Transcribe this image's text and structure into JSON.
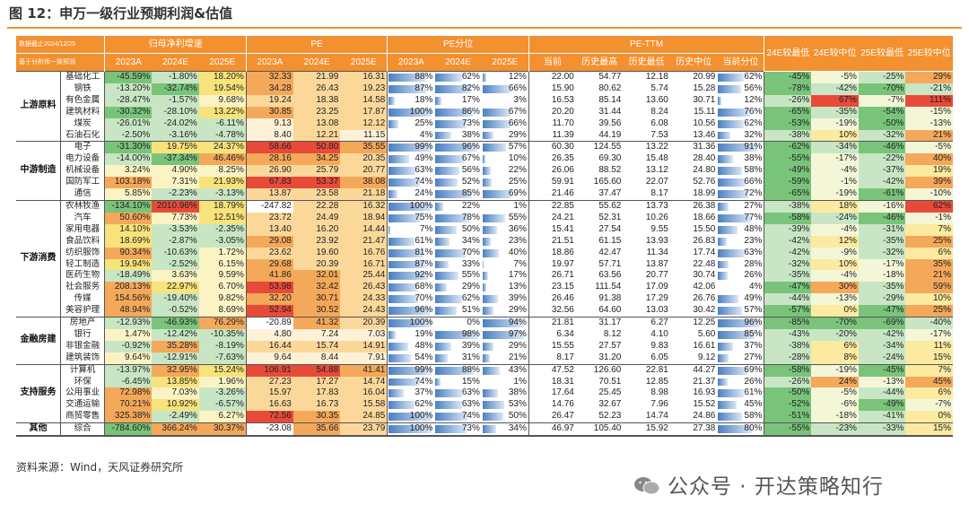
{
  "title": "图 12：申万一级行业预期利润&估值",
  "header": {
    "note1": "数据截止2024/12/25",
    "note2": "基于分析师一致预测",
    "groups": [
      "归母净利增速",
      "PE",
      "PE分位",
      "PE-TTM"
    ],
    "sub_years": [
      "2023A",
      "2024E",
      "2025E"
    ],
    "pe_ttm_cols": [
      "当前",
      "历史最高",
      "历史最低",
      "历史中位",
      "当前分位"
    ],
    "right_cols": [
      "24E较最低",
      "24E较中位",
      "25E较最低",
      "25E较中位"
    ]
  },
  "colors": {
    "accent": "#f3902f",
    "red": "#e84a3a",
    "orange": "#f4a85a",
    "yellow": "#f7e37a",
    "green": "#79c47a",
    "bar": "#4a7fc3"
  },
  "groups": [
    {
      "name": "上游原料",
      "rows": [
        {
          "ind": "基础化工",
          "np": [
            "-45.59%",
            "-1.80%",
            "18.20%"
          ],
          "pe": [
            "32.33",
            "21.99",
            "16.31"
          ],
          "pct": [
            "88%",
            "62%",
            "12%"
          ],
          "ttm": [
            "22.00",
            "54.77",
            "12.18",
            "20.99"
          ],
          "cur_pct": "62%",
          "cmp": [
            "-45%",
            "-5%",
            "-25%",
            "29%"
          ]
        },
        {
          "ind": "钢铁",
          "np": [
            "-13.20%",
            "-32.74%",
            "19.54%"
          ],
          "pe": [
            "34.28",
            "26.43",
            "19.23"
          ],
          "pct": [
            "87%",
            "82%",
            "66%"
          ],
          "ttm": [
            "15.90",
            "80.62",
            "5.74",
            "15.28"
          ],
          "cur_pct": "56%",
          "cmp": [
            "-78%",
            "-42%",
            "-70%",
            "-21%"
          ]
        },
        {
          "ind": "有色金属",
          "np": [
            "-28.47%",
            "-1.57%",
            "9.68%"
          ],
          "pe": [
            "19.24",
            "18.38",
            "14.58"
          ],
          "pct": [
            "18%",
            "17%",
            "3%"
          ],
          "ttm": [
            "16.53",
            "85.14",
            "13.60",
            "30.71"
          ],
          "cur_pct": "12%",
          "cmp": [
            "-26%",
            "67%",
            "-7%",
            "111%"
          ]
        },
        {
          "ind": "建筑材料",
          "np": [
            "-30.32%",
            "-28.10%",
            "13.22%"
          ],
          "pe": [
            "30.85",
            "23.25",
            "17.87"
          ],
          "pct": [
            "100%",
            "86%",
            "67%"
          ],
          "ttm": [
            "20.20",
            "31.44",
            "8.24",
            "15.11"
          ],
          "cur_pct": "76%",
          "cmp": [
            "-65%",
            "-35%",
            "-54%",
            "-15%"
          ]
        },
        {
          "ind": "煤炭",
          "np": [
            "-26.01%",
            "-24.02%",
            "-6.11%"
          ],
          "pe": [
            "9.13",
            "13.08",
            "12.12"
          ],
          "pct": [
            "25%",
            "73%",
            "66%"
          ],
          "ttm": [
            "11.70",
            "39.56",
            "6.08",
            "10.56"
          ],
          "cur_pct": "62%",
          "cmp": [
            "-53%",
            "-19%",
            "-50%",
            "-13%"
          ]
        },
        {
          "ind": "石油石化",
          "np": [
            "-2.50%",
            "-3.16%",
            "-4.78%"
          ],
          "pe": [
            "8.40",
            "12.21",
            "11.15"
          ],
          "pct": [
            "4%",
            "38%",
            "29%"
          ],
          "ttm": [
            "11.39",
            "44.19",
            "7.53",
            "13.46"
          ],
          "cur_pct": "32%",
          "cmp": [
            "-38%",
            "10%",
            "-32%",
            "21%"
          ]
        }
      ]
    },
    {
      "name": "中游制造",
      "rows": [
        {
          "ind": "电子",
          "np": [
            "-31.30%",
            "19.75%",
            "24.37%"
          ],
          "pe": [
            "58.66",
            "50.80",
            "35.55"
          ],
          "pct": [
            "99%",
            "96%",
            "57%"
          ],
          "ttm": [
            "60.30",
            "124.55",
            "13.22",
            "31.36"
          ],
          "cur_pct": "91%",
          "cmp": [
            "-62%",
            "-34%",
            "-46%",
            "-5%"
          ]
        },
        {
          "ind": "电力设备",
          "np": [
            "-14.00%",
            "-37.34%",
            "46.46%"
          ],
          "pe": [
            "28.16",
            "34.25",
            "20.35"
          ],
          "pct": [
            "49%",
            "67%",
            "10%"
          ],
          "ttm": [
            "26.35",
            "69.30",
            "15.48",
            "28.40"
          ],
          "cur_pct": "38%",
          "cmp": [
            "-55%",
            "-17%",
            "-22%",
            "40%"
          ]
        },
        {
          "ind": "机械设备",
          "np": [
            "3.24%",
            "4.90%",
            "8.25%"
          ],
          "pe": [
            "26.90",
            "25.79",
            "20.77"
          ],
          "pct": [
            "63%",
            "56%",
            "22%"
          ],
          "ttm": [
            "26.06",
            "88.52",
            "13.12",
            "24.80"
          ],
          "cur_pct": "58%",
          "cmp": [
            "-49%",
            "-4%",
            "-37%",
            "19%"
          ]
        },
        {
          "ind": "国防军工",
          "np": [
            "103.18%",
            "7.31%",
            "21.93%"
          ],
          "pe": [
            "67.83",
            "53.37",
            "38.08"
          ],
          "pct": [
            "74%",
            "52%",
            "25%"
          ],
          "ttm": [
            "59.91",
            "165.60",
            "22.07",
            "52.76"
          ],
          "cur_pct": "66%",
          "cmp": [
            "-59%",
            "-1%",
            "-42%",
            "39%"
          ]
        },
        {
          "ind": "通信",
          "np": [
            "5.85%",
            "-2.23%",
            "-3.13%"
          ],
          "pe": [
            "13.87",
            "23.58",
            "21.18"
          ],
          "pct": [
            "24%",
            "85%",
            "69%"
          ],
          "ttm": [
            "21.46",
            "37.47",
            "8.17",
            "18.99"
          ],
          "cur_pct": "72%",
          "cmp": [
            "-65%",
            "-19%",
            "-61%",
            "-10%"
          ]
        }
      ]
    },
    {
      "name": "下游消费",
      "rows": [
        {
          "ind": "农林牧渔",
          "np": [
            "-134.10%",
            "2010.96%",
            "18.79%"
          ],
          "pe": [
            "-247.82",
            "22.28",
            "16.32"
          ],
          "pct": [
            "100%",
            "22%",
            "1%"
          ],
          "ttm": [
            "22.85",
            "55.62",
            "13.73",
            "26.38"
          ],
          "cur_pct": "27%",
          "cmp": [
            "-38%",
            "18%",
            "-16%",
            "62%"
          ]
        },
        {
          "ind": "汽车",
          "np": [
            "50.60%",
            "7.73%",
            "12.51%"
          ],
          "pe": [
            "23.72",
            "24.49",
            "18.94"
          ],
          "pct": [
            "75%",
            "78%",
            "55%"
          ],
          "ttm": [
            "24.21",
            "52.31",
            "10.26",
            "18.66"
          ],
          "cur_pct": "77%",
          "cmp": [
            "-58%",
            "-24%",
            "-46%",
            "-1%"
          ]
        },
        {
          "ind": "家用电器",
          "np": [
            "14.10%",
            "-3.53%",
            "-2.35%"
          ],
          "pe": [
            "13.40",
            "16.20",
            "14.44"
          ],
          "pct": [
            "7%",
            "50%",
            "36%"
          ],
          "ttm": [
            "15.41",
            "27.54",
            "9.55",
            "15.50"
          ],
          "cur_pct": "48%",
          "cmp": [
            "-39%",
            "-4%",
            "-31%",
            "7%"
          ]
        },
        {
          "ind": "食品饮料",
          "np": [
            "18.69%",
            "-2.87%",
            "-3.05%"
          ],
          "pe": [
            "29.08",
            "23.92",
            "21.47"
          ],
          "pct": [
            "61%",
            "34%",
            "23%"
          ],
          "ttm": [
            "21.51",
            "61.15",
            "13.93",
            "26.83"
          ],
          "cur_pct": "23%",
          "cmp": [
            "-42%",
            "12%",
            "-35%",
            "25%"
          ]
        },
        {
          "ind": "纺织服饰",
          "np": [
            "90.34%",
            "-10.63%",
            "1.72%"
          ],
          "pe": [
            "23.62",
            "19.60",
            "16.76"
          ],
          "pct": [
            "81%",
            "70%",
            "40%"
          ],
          "ttm": [
            "18.86",
            "42.47",
            "11.34",
            "17.74"
          ],
          "cur_pct": "63%",
          "cmp": [
            "-42%",
            "-9%",
            "-32%",
            "6%"
          ]
        },
        {
          "ind": "轻工制造",
          "np": [
            "19.94%",
            "-2.52%",
            "6.15%"
          ],
          "pe": [
            "29.68",
            "20.39",
            "16.71"
          ],
          "pct": [
            "87%",
            "33%",
            "7%"
          ],
          "ttm": [
            "19.97",
            "57.71",
            "13.87",
            "22.48"
          ],
          "cur_pct": "28%",
          "cmp": [
            "-32%",
            "10%",
            "-17%",
            "35%"
          ]
        },
        {
          "ind": "医药生物",
          "np": [
            "-18.49%",
            "3.63%",
            "9.59%"
          ],
          "pe": [
            "41.86",
            "32.01",
            "25.44"
          ],
          "pct": [
            "92%",
            "55%",
            "17%"
          ],
          "ttm": [
            "26.71",
            "63.56",
            "20.77",
            "30.74"
          ],
          "cur_pct": "26%",
          "cmp": [
            "-35%",
            "-4%",
            "-18%",
            "21%"
          ]
        },
        {
          "ind": "社会服务",
          "np": [
            "208.13%",
            "22.97%",
            "6.70%"
          ],
          "pe": [
            "53.98",
            "32.42",
            "26.43"
          ],
          "pct": [
            "68%",
            "29%",
            "13%"
          ],
          "ttm": [
            "23.15",
            "111.54",
            "17.09",
            "42.06"
          ],
          "cur_pct": "4%",
          "cmp": [
            "-47%",
            "30%",
            "-35%",
            "59%"
          ]
        },
        {
          "ind": "传媒",
          "np": [
            "154.56%",
            "-19.40%",
            "9.82%"
          ],
          "pe": [
            "32.20",
            "30.71",
            "24.33"
          ],
          "pct": [
            "70%",
            "62%",
            "39%"
          ],
          "ttm": [
            "26.46",
            "91.38",
            "17.29",
            "26.76"
          ],
          "cur_pct": "49%",
          "cmp": [
            "-44%",
            "-13%",
            "-29%",
            "10%"
          ]
        },
        {
          "ind": "美容护理",
          "np": [
            "48.94%",
            "-0.52%",
            "8.69%"
          ],
          "pe": [
            "52.94",
            "30.52",
            "24.43"
          ],
          "pct": [
            "96%",
            "51%",
            "29%"
          ],
          "ttm": [
            "32.56",
            "64.60",
            "13.03",
            "30.42"
          ],
          "cur_pct": "57%",
          "cmp": [
            "-57%",
            "0%",
            "-47%",
            "25%"
          ]
        }
      ]
    },
    {
      "name": "金融房建",
      "rows": [
        {
          "ind": "房地产",
          "np": [
            "-12.93%",
            "-46.93%",
            "76.29%"
          ],
          "pe": [
            "-20.89",
            "41.32",
            "20.39"
          ],
          "pct": [
            "100%",
            "0%",
            "94%"
          ],
          "ttm": [
            "21.81",
            "31.17",
            "6.27",
            "12.25"
          ],
          "cur_pct": "96%",
          "cmp": [
            "-85%",
            "-70%",
            "-69%",
            "-40%"
          ]
        },
        {
          "ind": "银行",
          "np": [
            "1.47%",
            "-12.42%",
            "-10.35%"
          ],
          "pe": [
            "4.80",
            "7.24",
            "7.03"
          ],
          "pct": [
            "19%",
            "98%",
            "97%"
          ],
          "ttm": [
            "6.34",
            "8.12",
            "4.10",
            "5.60"
          ],
          "cur_pct": "85%",
          "cmp": [
            "-43%",
            "-20%",
            "-42%",
            "-17%"
          ]
        },
        {
          "ind": "非银金融",
          "np": [
            "-0.92%",
            "35.28%",
            "-8.19%"
          ],
          "pe": [
            "16.44",
            "15.74",
            "14.91"
          ],
          "pct": [
            "48%",
            "39%",
            "29%"
          ],
          "ttm": [
            "15.55",
            "27.57",
            "9.83",
            "16.61"
          ],
          "cur_pct": "37%",
          "cmp": [
            "-38%",
            "6%",
            "-34%",
            "11%"
          ]
        },
        {
          "ind": "建筑装饰",
          "np": [
            "9.64%",
            "-12.91%",
            "-7.63%"
          ],
          "pe": [
            "9.64",
            "8.44",
            "7.91"
          ],
          "pct": [
            "54%",
            "31%",
            "21%"
          ],
          "ttm": [
            "8.17",
            "31.20",
            "6.05",
            "9.12"
          ],
          "cur_pct": "27%",
          "cmp": [
            "-28%",
            "8%",
            "-24%",
            "15%"
          ]
        }
      ]
    },
    {
      "name": "支持服务",
      "rows": [
        {
          "ind": "计算机",
          "np": [
            "-13.97%",
            "32.95%",
            "15.24%"
          ],
          "pe": [
            "106.91",
            "54.88",
            "41.41"
          ],
          "pct": [
            "99%",
            "88%",
            "43%"
          ],
          "ttm": [
            "47.52",
            "126.60",
            "22.81",
            "44.27"
          ],
          "cur_pct": "69%",
          "cmp": [
            "-58%",
            "-19%",
            "-45%",
            "7%"
          ]
        },
        {
          "ind": "环保",
          "np": [
            "-6.45%",
            "13.85%",
            "1.96%"
          ],
          "pe": [
            "27.23",
            "17.27",
            "14.74"
          ],
          "pct": [
            "74%",
            "15%",
            "1%"
          ],
          "ttm": [
            "18.31",
            "70.51",
            "12.85",
            "21.37"
          ],
          "cur_pct": "26%",
          "cmp": [
            "-26%",
            "24%",
            "-13%",
            "45%"
          ]
        },
        {
          "ind": "公用事业",
          "np": [
            "72.98%",
            "7.03%",
            "-3.26%"
          ],
          "pe": [
            "15.97",
            "17.83",
            "16.04"
          ],
          "pct": [
            "37%",
            "63%",
            "38%"
          ],
          "ttm": [
            "17.64",
            "25.45",
            "8.98",
            "16.93"
          ],
          "cur_pct": "61%",
          "cmp": [
            "-50%",
            "-5%",
            "-44%",
            "6%"
          ]
        },
        {
          "ind": "交通运输",
          "np": [
            "70.21%",
            "10.92%",
            "-6.57%"
          ],
          "pe": [
            "16.63",
            "16.73",
            "15.58"
          ],
          "pct": [
            "62%",
            "63%",
            "53%"
          ],
          "ttm": [
            "14.76",
            "32.67",
            "7.96",
            "15.52"
          ],
          "cur_pct": "45%",
          "cmp": [
            "-52%",
            "-6%",
            "-49%",
            "-7%"
          ]
        },
        {
          "ind": "商贸零售",
          "np": [
            "325.38%",
            "-2.49%",
            "6.27%"
          ],
          "pe": [
            "72.56",
            "30.35",
            "24.85"
          ],
          "pct": [
            "100%",
            "74%",
            "50%"
          ],
          "ttm": [
            "26.47",
            "52.23",
            "14.74",
            "24.86"
          ],
          "cur_pct": "58%",
          "cmp": [
            "-51%",
            "-18%",
            "-41%",
            "0%"
          ]
        }
      ]
    },
    {
      "name": "其他",
      "rows": [
        {
          "ind": "综合",
          "np": [
            "-784.60%",
            "366.24%",
            "30.37%"
          ],
          "pe": [
            "-23.08",
            "35.66",
            "23.79"
          ],
          "pct": [
            "100%",
            "73%",
            "34%"
          ],
          "ttm": [
            "46.97",
            "105.40",
            "15.92",
            "27.38"
          ],
          "cur_pct": "80%",
          "cmp": [
            "-55%",
            "-23%",
            "-33%",
            "15%"
          ]
        }
      ]
    }
  ],
  "source": "资料来源：Wind，天风证券研究所",
  "watermark": "公众号 · 开达策略知行"
}
